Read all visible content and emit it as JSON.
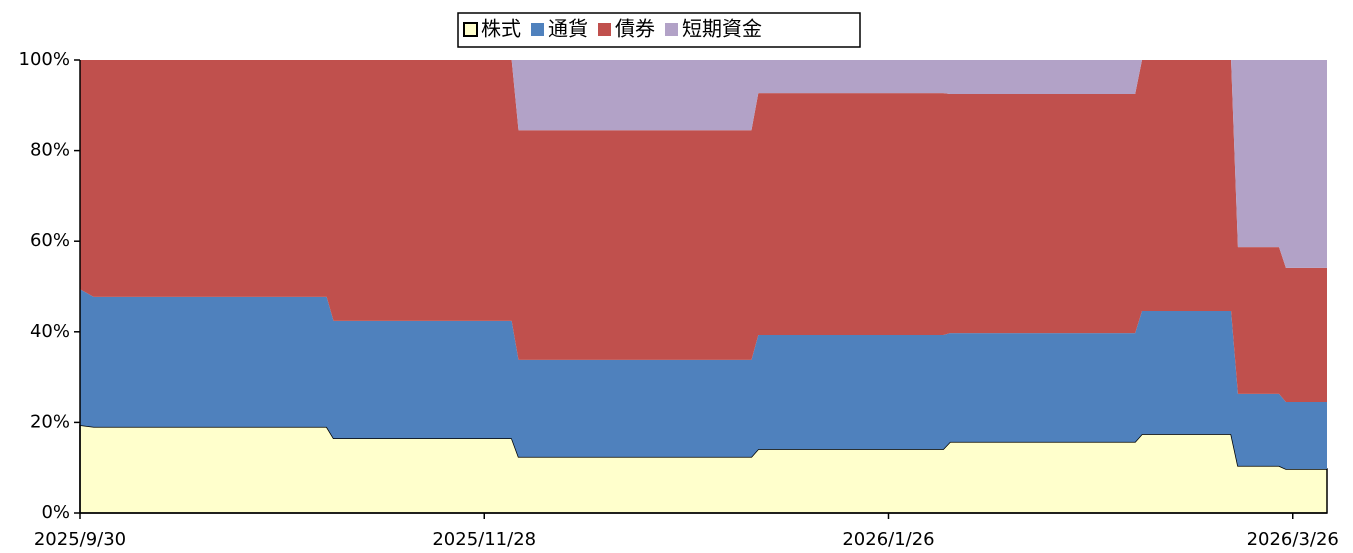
{
  "chart_data": {
    "type": "stacked_area",
    "x": [
      0,
      2,
      36,
      37,
      63,
      64,
      98,
      99,
      126,
      127,
      154,
      155,
      168,
      169,
      175,
      176,
      182
    ],
    "xlim": [
      0,
      182
    ],
    "xticks": [
      {
        "value": 0,
        "label": "2025/9/30"
      },
      {
        "value": 59,
        "label": "2025/11/28"
      },
      {
        "value": 118,
        "label": "2026/1/26"
      },
      {
        "value": 177,
        "label": "2026/3/26"
      }
    ],
    "ylim": [
      0,
      100
    ],
    "yticks": [
      {
        "value": 0,
        "label": "0%"
      },
      {
        "value": 20,
        "label": "20%"
      },
      {
        "value": 40,
        "label": "40%"
      },
      {
        "value": 60,
        "label": "60%"
      },
      {
        "value": 80,
        "label": "80%"
      },
      {
        "value": 100,
        "label": "100%"
      }
    ],
    "legend": "top",
    "series": [
      {
        "name": "株式",
        "color": "#ffffcc",
        "values": [
          19.4,
          19,
          19,
          16.5,
          16.5,
          12.4,
          12.4,
          14.1,
          14.1,
          15.7,
          15.7,
          17.4,
          17.4,
          10.4,
          10.4,
          9.7,
          9.7
        ]
      },
      {
        "name": "通貨",
        "color": "#4f81bd",
        "values": [
          30.0,
          28.7,
          28.7,
          25.9,
          25.9,
          21.4,
          21.4,
          25.2,
          25.2,
          24.0,
          24.0,
          27.2,
          27.2,
          15.9,
          15.9,
          14.8,
          14.8
        ]
      },
      {
        "name": "債券",
        "color": "#c0504d",
        "values": [
          50.6,
          52.3,
          52.3,
          57.6,
          57.6,
          50.7,
          50.7,
          53.4,
          53.4,
          52.8,
          52.8,
          55.4,
          55.4,
          32.4,
          32.4,
          29.6,
          29.6
        ]
      },
      {
        "name": "短期資金",
        "color": "#b2a2c7",
        "values": [
          0,
          0,
          0,
          0,
          0,
          15.5,
          15.5,
          7.3,
          7.3,
          7.5,
          7.5,
          0,
          0,
          41.3,
          41.3,
          45.9,
          45.9
        ]
      }
    ]
  }
}
